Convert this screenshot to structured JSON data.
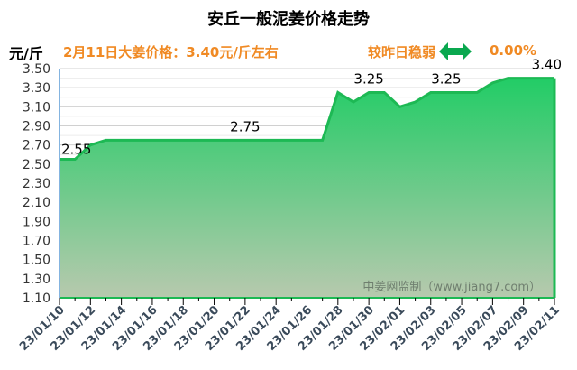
{
  "header": {
    "unit": "元/斤",
    "price_note": "2月11日大姜价格：3.40元/斤左右",
    "compare_label": "较昨日稳弱",
    "compare_icon": "double-arrow-horizontal-icon",
    "change_pct": "0.00%"
  },
  "colors": {
    "accent": "#f08a24",
    "line": "#1db954",
    "arrow": "#0aa84f",
    "fill_top": "#22cc66",
    "fill_bottom": "#b7c9ae"
  },
  "chart_data": {
    "type": "area",
    "title": "安丘一般泥姜价格走势",
    "ylabel": "元/斤",
    "ylim": [
      1.1,
      3.5
    ],
    "yticks": [
      "1.10",
      "1.30",
      "1.50",
      "1.70",
      "1.90",
      "2.10",
      "2.30",
      "2.50",
      "2.70",
      "2.90",
      "3.10",
      "3.30",
      "3.50"
    ],
    "grid": true,
    "x": [
      "23/01/10",
      "23/01/11",
      "23/01/12",
      "23/01/13",
      "23/01/14",
      "23/01/15",
      "23/01/16",
      "23/01/17",
      "23/01/18",
      "23/01/19",
      "23/01/20",
      "23/01/21",
      "23/01/22",
      "23/01/23",
      "23/01/24",
      "23/01/25",
      "23/01/26",
      "23/01/27",
      "23/01/28",
      "23/01/29",
      "23/01/30",
      "23/01/31",
      "23/02/01",
      "23/02/02",
      "23/02/03",
      "23/02/04",
      "23/02/05",
      "23/02/06",
      "23/02/07",
      "23/02/08",
      "23/02/09",
      "23/02/10",
      "23/02/11"
    ],
    "xticks": [
      "23/01/10",
      "23/01/12",
      "23/01/14",
      "23/01/16",
      "23/01/18",
      "23/01/20",
      "23/01/22",
      "23/01/24",
      "23/01/26",
      "23/01/28",
      "23/01/30",
      "23/02/01",
      "23/02/03",
      "23/02/05",
      "23/02/07",
      "23/02/09",
      "23/02/11"
    ],
    "values": [
      2.55,
      2.55,
      2.7,
      2.75,
      2.75,
      2.75,
      2.75,
      2.75,
      2.75,
      2.75,
      2.75,
      2.75,
      2.75,
      2.75,
      2.75,
      2.75,
      2.75,
      2.75,
      3.25,
      3.15,
      3.25,
      3.25,
      3.1,
      3.15,
      3.25,
      3.25,
      3.25,
      3.25,
      3.35,
      3.4,
      3.4,
      3.4,
      3.4
    ],
    "data_labels": [
      {
        "x": "23/01/10",
        "text": "2.55"
      },
      {
        "x": "23/01/22",
        "text": "2.75"
      },
      {
        "x": "23/01/30",
        "text": "3.25"
      },
      {
        "x": "23/02/04",
        "text": "3.25"
      },
      {
        "x": "23/02/11",
        "text": "3.40"
      }
    ],
    "watermark": "中姜网监制（www.jiang7.com）"
  }
}
